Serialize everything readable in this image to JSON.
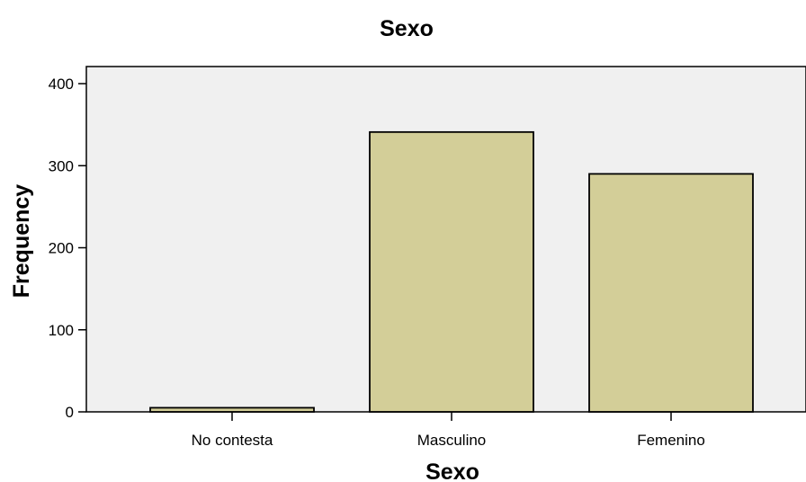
{
  "chart_data": {
    "type": "bar",
    "title": "Sexo",
    "xlabel": "Sexo",
    "ylabel": "Frequency",
    "categories": [
      "No contesta",
      "Masculino",
      "Femenino"
    ],
    "values": [
      5,
      341,
      290
    ],
    "ylim": [
      0,
      400
    ],
    "yticks": [
      0,
      100,
      200,
      300,
      400
    ],
    "ytick_labels": [
      "0",
      "100",
      "200",
      "300",
      "400"
    ],
    "grid": false,
    "legend": "none",
    "colors": {
      "bar_fill": "#d3ce98",
      "bar_stroke": "#000000",
      "plot_background": "#f0f0f0"
    }
  }
}
